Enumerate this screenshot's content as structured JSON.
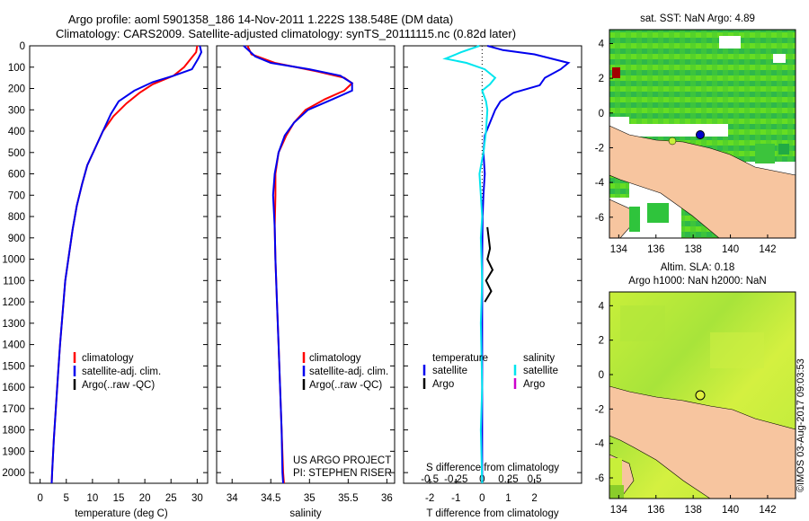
{
  "header": {
    "line1": "Argo profile: aoml 5901358_186 14-Nov-2011 1.222S 138.548E (DM data)",
    "line2": "Climatology: CARS2009. Satellite-adjusted climatology: synTS_20111115.nc (0.82d later)"
  },
  "colors": {
    "climatology": "#ff0000",
    "satellite": "#0000ee",
    "argo": "#000000",
    "satellite_t": "#00e5ee",
    "argo_s": "#cc00cc",
    "land": "#f7c59f"
  },
  "depth_axis": {
    "min": 0,
    "max": 2050,
    "ticks": [
      0,
      100,
      200,
      300,
      400,
      500,
      600,
      700,
      800,
      900,
      1000,
      1100,
      1200,
      1300,
      1400,
      1500,
      1600,
      1700,
      1800,
      1900,
      2000
    ]
  },
  "chart_data": [
    {
      "type": "line",
      "id": "temperature",
      "xlabel": "temperature (deg C)",
      "xlim": [
        -2,
        32
      ],
      "xticks": [
        0,
        5,
        10,
        15,
        20,
        25,
        30
      ],
      "legend": {
        "position": "bottom-left",
        "entries": [
          "climatology",
          "satellite-adj. clim.",
          "Argo(..raw -QC)"
        ]
      },
      "series": [
        {
          "name": "climatology",
          "color": "#ff0000",
          "points": [
            [
              30.0,
              0
            ],
            [
              29.8,
              30
            ],
            [
              28.8,
              60
            ],
            [
              27.5,
              100
            ],
            [
              25.5,
              140
            ],
            [
              21.5,
              180
            ],
            [
              19.0,
              220
            ],
            [
              16.5,
              270
            ],
            [
              14.0,
              330
            ],
            [
              12.0,
              400
            ],
            [
              10.5,
              480
            ],
            [
              9.0,
              560
            ],
            [
              8.0,
              650
            ],
            [
              7.0,
              750
            ],
            [
              6.2,
              860
            ],
            [
              5.5,
              980
            ],
            [
              4.8,
              1100
            ],
            [
              4.3,
              1250
            ],
            [
              3.8,
              1400
            ],
            [
              3.4,
              1550
            ],
            [
              3.0,
              1700
            ],
            [
              2.6,
              1850
            ],
            [
              2.3,
              2000
            ],
            [
              2.2,
              2050
            ]
          ]
        },
        {
          "name": "satellite-adj. clim.",
          "color": "#0000ee",
          "points": [
            [
              30.5,
              0
            ],
            [
              30.8,
              30
            ],
            [
              30.2,
              60
            ],
            [
              29.0,
              110
            ],
            [
              25.5,
              140
            ],
            [
              21.5,
              170
            ],
            [
              18.0,
              210
            ],
            [
              15.0,
              260
            ],
            [
              13.5,
              320
            ],
            [
              12.0,
              400
            ],
            [
              10.5,
              480
            ],
            [
              9.0,
              560
            ],
            [
              8.0,
              650
            ],
            [
              7.0,
              750
            ],
            [
              6.2,
              860
            ],
            [
              5.5,
              980
            ],
            [
              4.8,
              1100
            ],
            [
              4.3,
              1250
            ],
            [
              3.8,
              1400
            ],
            [
              3.4,
              1550
            ],
            [
              3.0,
              1700
            ],
            [
              2.6,
              1850
            ],
            [
              2.3,
              2000
            ],
            [
              2.2,
              2050
            ]
          ]
        }
      ]
    },
    {
      "type": "line",
      "id": "salinity",
      "xlabel": "salinity",
      "xlim": [
        33.8,
        36.1
      ],
      "xticks": [
        34,
        34.5,
        35,
        35.5,
        36
      ],
      "legend": {
        "position": "bottom-left",
        "entries": [
          "climatology",
          "satellite-adj. clim.",
          "Argo(..raw -QC)"
        ]
      },
      "series": [
        {
          "name": "climatology",
          "color": "#ff0000",
          "points": [
            [
              34.2,
              0
            ],
            [
              34.25,
              40
            ],
            [
              34.55,
              80
            ],
            [
              35.1,
              120
            ],
            [
              35.45,
              150
            ],
            [
              35.55,
              175
            ],
            [
              35.45,
              210
            ],
            [
              35.2,
              250
            ],
            [
              34.95,
              300
            ],
            [
              34.8,
              360
            ],
            [
              34.7,
              420
            ],
            [
              34.6,
              500
            ],
            [
              34.56,
              600
            ],
            [
              34.56,
              700
            ],
            [
              34.55,
              850
            ],
            [
              34.56,
              1000
            ],
            [
              34.58,
              1200
            ],
            [
              34.6,
              1400
            ],
            [
              34.62,
              1600
            ],
            [
              34.64,
              1800
            ],
            [
              34.66,
              2000
            ],
            [
              34.67,
              2050
            ]
          ]
        },
        {
          "name": "satellite-adj. clim.",
          "color": "#0000ee",
          "points": [
            [
              34.15,
              0
            ],
            [
              34.3,
              50
            ],
            [
              34.5,
              80
            ],
            [
              35.0,
              110
            ],
            [
              35.4,
              140
            ],
            [
              35.55,
              175
            ],
            [
              35.55,
              210
            ],
            [
              35.3,
              250
            ],
            [
              34.98,
              300
            ],
            [
              34.8,
              360
            ],
            [
              34.68,
              420
            ],
            [
              34.6,
              500
            ],
            [
              34.55,
              600
            ],
            [
              34.53,
              700
            ],
            [
              34.55,
              850
            ],
            [
              34.56,
              1000
            ],
            [
              34.58,
              1200
            ],
            [
              34.6,
              1400
            ],
            [
              34.62,
              1600
            ],
            [
              34.64,
              1800
            ],
            [
              34.65,
              2000
            ],
            [
              34.66,
              2050
            ]
          ]
        }
      ]
    },
    {
      "type": "line",
      "id": "difference",
      "xlabel": "T difference from climatology",
      "xlabel2": "S difference from climatology",
      "xlim": [
        -3,
        3.8
      ],
      "xticks": [
        -2,
        -1,
        0,
        1,
        2
      ],
      "s_ticks": [
        "-0.5",
        "-0.25",
        "0",
        "0.25",
        "0.5"
      ],
      "s_tick_positions": [
        -2,
        -1,
        0,
        1,
        2
      ],
      "legend": {
        "position": "bottom",
        "left_title": "temperature",
        "right_title": "salinity",
        "entries": [
          "satellite",
          "Argo",
          "satellite",
          "Argo"
        ]
      },
      "series": [
        {
          "name": "temperature satellite",
          "color": "#0000ee",
          "points": [
            [
              0.2,
              0
            ],
            [
              0.8,
              20
            ],
            [
              2.0,
              40
            ],
            [
              3.3,
              80
            ],
            [
              3.0,
              110
            ],
            [
              2.4,
              150
            ],
            [
              2.2,
              185
            ],
            [
              1.2,
              220
            ],
            [
              0.7,
              260
            ],
            [
              0.5,
              300
            ],
            [
              0.3,
              360
            ],
            [
              0.1,
              420
            ],
            [
              0.05,
              500
            ],
            [
              0.1,
              600
            ],
            [
              0.05,
              700
            ],
            [
              0.02,
              800
            ],
            [
              0.0,
              1000
            ],
            [
              0.0,
              2050
            ]
          ]
        },
        {
          "name": "salinity satellite",
          "color": "#00e5ee",
          "points": [
            [
              -0.1,
              0
            ],
            [
              -0.8,
              30
            ],
            [
              -1.4,
              60
            ],
            [
              -0.6,
              80
            ],
            [
              0.1,
              110
            ],
            [
              0.5,
              150
            ],
            [
              0.3,
              180
            ],
            [
              0.0,
              210
            ],
            [
              0.15,
              260
            ],
            [
              0.2,
              300
            ],
            [
              0.15,
              400
            ],
            [
              0.05,
              500
            ],
            [
              -0.1,
              600
            ],
            [
              -0.05,
              700
            ],
            [
              0.0,
              800
            ],
            [
              -0.05,
              900
            ],
            [
              0.0,
              1100
            ],
            [
              -0.05,
              1300
            ],
            [
              0.0,
              1600
            ],
            [
              -0.05,
              1800
            ],
            [
              0.0,
              2050
            ]
          ]
        },
        {
          "name": "temperature Argo",
          "color": "#000000",
          "points": [
            [
              0.2,
              850
            ],
            [
              0.3,
              950
            ],
            [
              0.2,
              1000
            ],
            [
              0.4,
              1050
            ],
            [
              0.15,
              1100
            ],
            [
              0.35,
              1150
            ],
            [
              0.1,
              1200
            ]
          ]
        }
      ],
      "zero_line": 0
    }
  ],
  "credits": {
    "line1": "US ARGO PROJECT",
    "line2": "PI: STEPHEN RISER"
  },
  "maps": [
    {
      "id": "sst",
      "title": "sat. SST: NaN Argo: 4.89",
      "xticks": [
        "134",
        "136",
        "138",
        "140",
        "142"
      ],
      "yticks": [
        "4",
        "2",
        "0",
        "-2",
        "-4",
        "-6"
      ],
      "xlim": [
        133.5,
        143.5
      ],
      "ylim": [
        -7.2,
        4.8
      ],
      "argo_lon": 138.548,
      "argo_lat": -1.222
    },
    {
      "id": "sla",
      "title": "Altim. SLA: 0.18",
      "subtitle": "Argo h1000: NaN h2000: NaN",
      "xticks": [
        "134",
        "136",
        "138",
        "140",
        "142"
      ],
      "yticks": [
        "4",
        "2",
        "0",
        "-2",
        "-4",
        "-6"
      ],
      "xlim": [
        133.5,
        143.5
      ],
      "ylim": [
        -7.2,
        4.8
      ],
      "argo_lon": 138.548,
      "argo_lat": -1.222
    }
  ],
  "footer_stamp": "©IMOS 03-Aug-2017 09:03:53"
}
